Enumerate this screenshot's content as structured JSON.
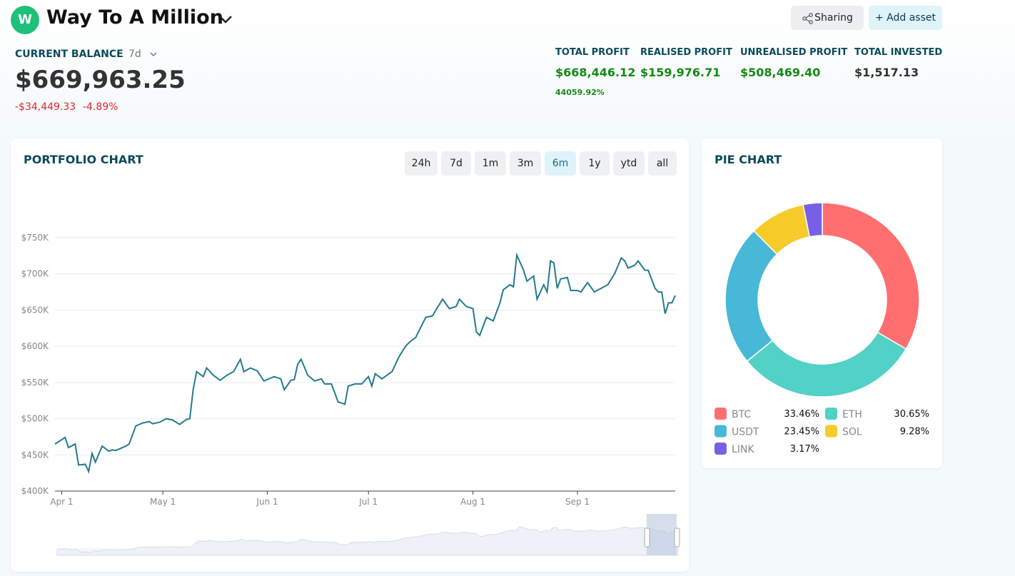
{
  "header": {
    "avatar": "W",
    "title": "Way To A Million"
  },
  "buttons": {
    "sharing": "Sharing",
    "add_asset": "+ Add asset"
  },
  "balance": {
    "label": "CURRENT BALANCE",
    "period": "7d",
    "amount": "$669,963.25",
    "change": "-$34,449.33",
    "change_pct": "-4.89%"
  },
  "stats": [
    {
      "label": "TOTAL PROFIT",
      "value": "$668,446.12",
      "sub": "44059.92%"
    },
    {
      "label": "REALISED PROFIT",
      "value": "$159,976.71"
    },
    {
      "label": "UNREALISED PROFIT",
      "value": "$508,469.40"
    },
    {
      "label": "TOTAL INVESTED",
      "value": "$1,517.13"
    }
  ],
  "ranges": [
    "24h",
    "7d",
    "1m",
    "3m",
    "6m",
    "1y",
    "ytd",
    "all"
  ],
  "active_range": "6m",
  "chart_data": [
    {
      "type": "line",
      "title": "PORTFOLIO CHART",
      "color": "#237b8f",
      "grid": true,
      "x": [
        -2,
        1,
        2,
        4,
        5,
        7,
        8,
        9,
        10,
        12,
        14,
        15,
        16,
        19,
        20,
        22,
        24,
        26,
        27,
        29,
        31,
        33,
        35,
        37,
        38,
        39,
        40,
        42,
        43,
        45,
        47,
        49,
        51,
        53,
        54,
        56,
        58,
        60,
        63,
        65,
        66,
        68,
        69,
        70,
        71,
        73,
        75,
        77,
        78,
        80,
        82,
        84,
        85,
        87,
        89,
        91,
        92,
        93,
        95,
        98,
        100,
        102,
        103,
        105,
        108,
        110,
        111,
        113,
        115,
        117,
        118,
        120,
        122,
        123,
        124,
        126,
        128,
        130,
        131,
        133,
        134,
        135,
        137,
        138,
        140,
        141,
        143,
        144,
        145,
        146,
        147,
        148,
        150,
        151,
        153,
        154,
        156,
        158,
        160,
        162,
        164,
        166,
        167,
        168,
        170,
        171,
        173,
        174,
        176,
        177,
        178,
        179,
        180,
        181,
        182
      ],
      "values": [
        465000,
        474000,
        460000,
        465000,
        436000,
        437000,
        427000,
        452000,
        440000,
        462000,
        455000,
        457000,
        456000,
        462000,
        465000,
        490000,
        494000,
        496000,
        493000,
        495000,
        500000,
        498000,
        492000,
        499000,
        500000,
        540000,
        565000,
        558000,
        570000,
        560000,
        553000,
        560000,
        565000,
        582000,
        565000,
        570000,
        566000,
        552000,
        558000,
        555000,
        540000,
        553000,
        554000,
        575000,
        582000,
        560000,
        552000,
        555000,
        548000,
        548000,
        523000,
        520000,
        545000,
        548000,
        548000,
        558000,
        545000,
        562000,
        555000,
        565000,
        585000,
        600000,
        605000,
        612000,
        640000,
        642000,
        650000,
        665000,
        652000,
        655000,
        665000,
        655000,
        652000,
        620000,
        615000,
        640000,
        635000,
        660000,
        678000,
        685000,
        682000,
        726000,
        705000,
        690000,
        697000,
        665000,
        685000,
        675000,
        718000,
        715000,
        680000,
        693000,
        695000,
        677000,
        677000,
        675000,
        688000,
        675000,
        680000,
        685000,
        700000,
        722000,
        718000,
        708000,
        712000,
        718000,
        705000,
        705000,
        680000,
        675000,
        675000,
        645000,
        660000,
        660000,
        670000
      ],
      "xlim": [
        -2,
        182
      ],
      "xticks": [
        {
          "value": 0,
          "label": "Apr 1"
        },
        {
          "value": 30,
          "label": "May 1"
        },
        {
          "value": 61,
          "label": "Jun 1"
        },
        {
          "value": 91,
          "label": "Jul 1"
        },
        {
          "value": 122,
          "label": "Aug 1"
        },
        {
          "value": 153,
          "label": "Sep 1"
        }
      ],
      "ylim": [
        400000,
        750000
      ],
      "yticks": [
        {
          "value": 400000,
          "label": "$400K"
        },
        {
          "value": 450000,
          "label": "$450K"
        },
        {
          "value": 500000,
          "label": "$500K"
        },
        {
          "value": 550000,
          "label": "$550K"
        },
        {
          "value": 600000,
          "label": "$600K"
        },
        {
          "value": 650000,
          "label": "$650K"
        },
        {
          "value": 700000,
          "label": "$700K"
        },
        {
          "value": 750000,
          "label": "$750K"
        }
      ]
    },
    {
      "type": "pie",
      "title": "PIE CHART",
      "categories": [
        "BTC",
        "ETH",
        "USDT",
        "SOL",
        "LINK"
      ],
      "values": [
        33.46,
        30.65,
        23.45,
        9.28,
        3.17
      ],
      "value_labels": [
        "33.46%",
        "30.65%",
        "23.45%",
        "9.28%",
        "3.17%"
      ],
      "colors": [
        "#ff6f6f",
        "#52d1c6",
        "#47b8d5",
        "#f6cb2a",
        "#7760e6"
      ]
    }
  ]
}
